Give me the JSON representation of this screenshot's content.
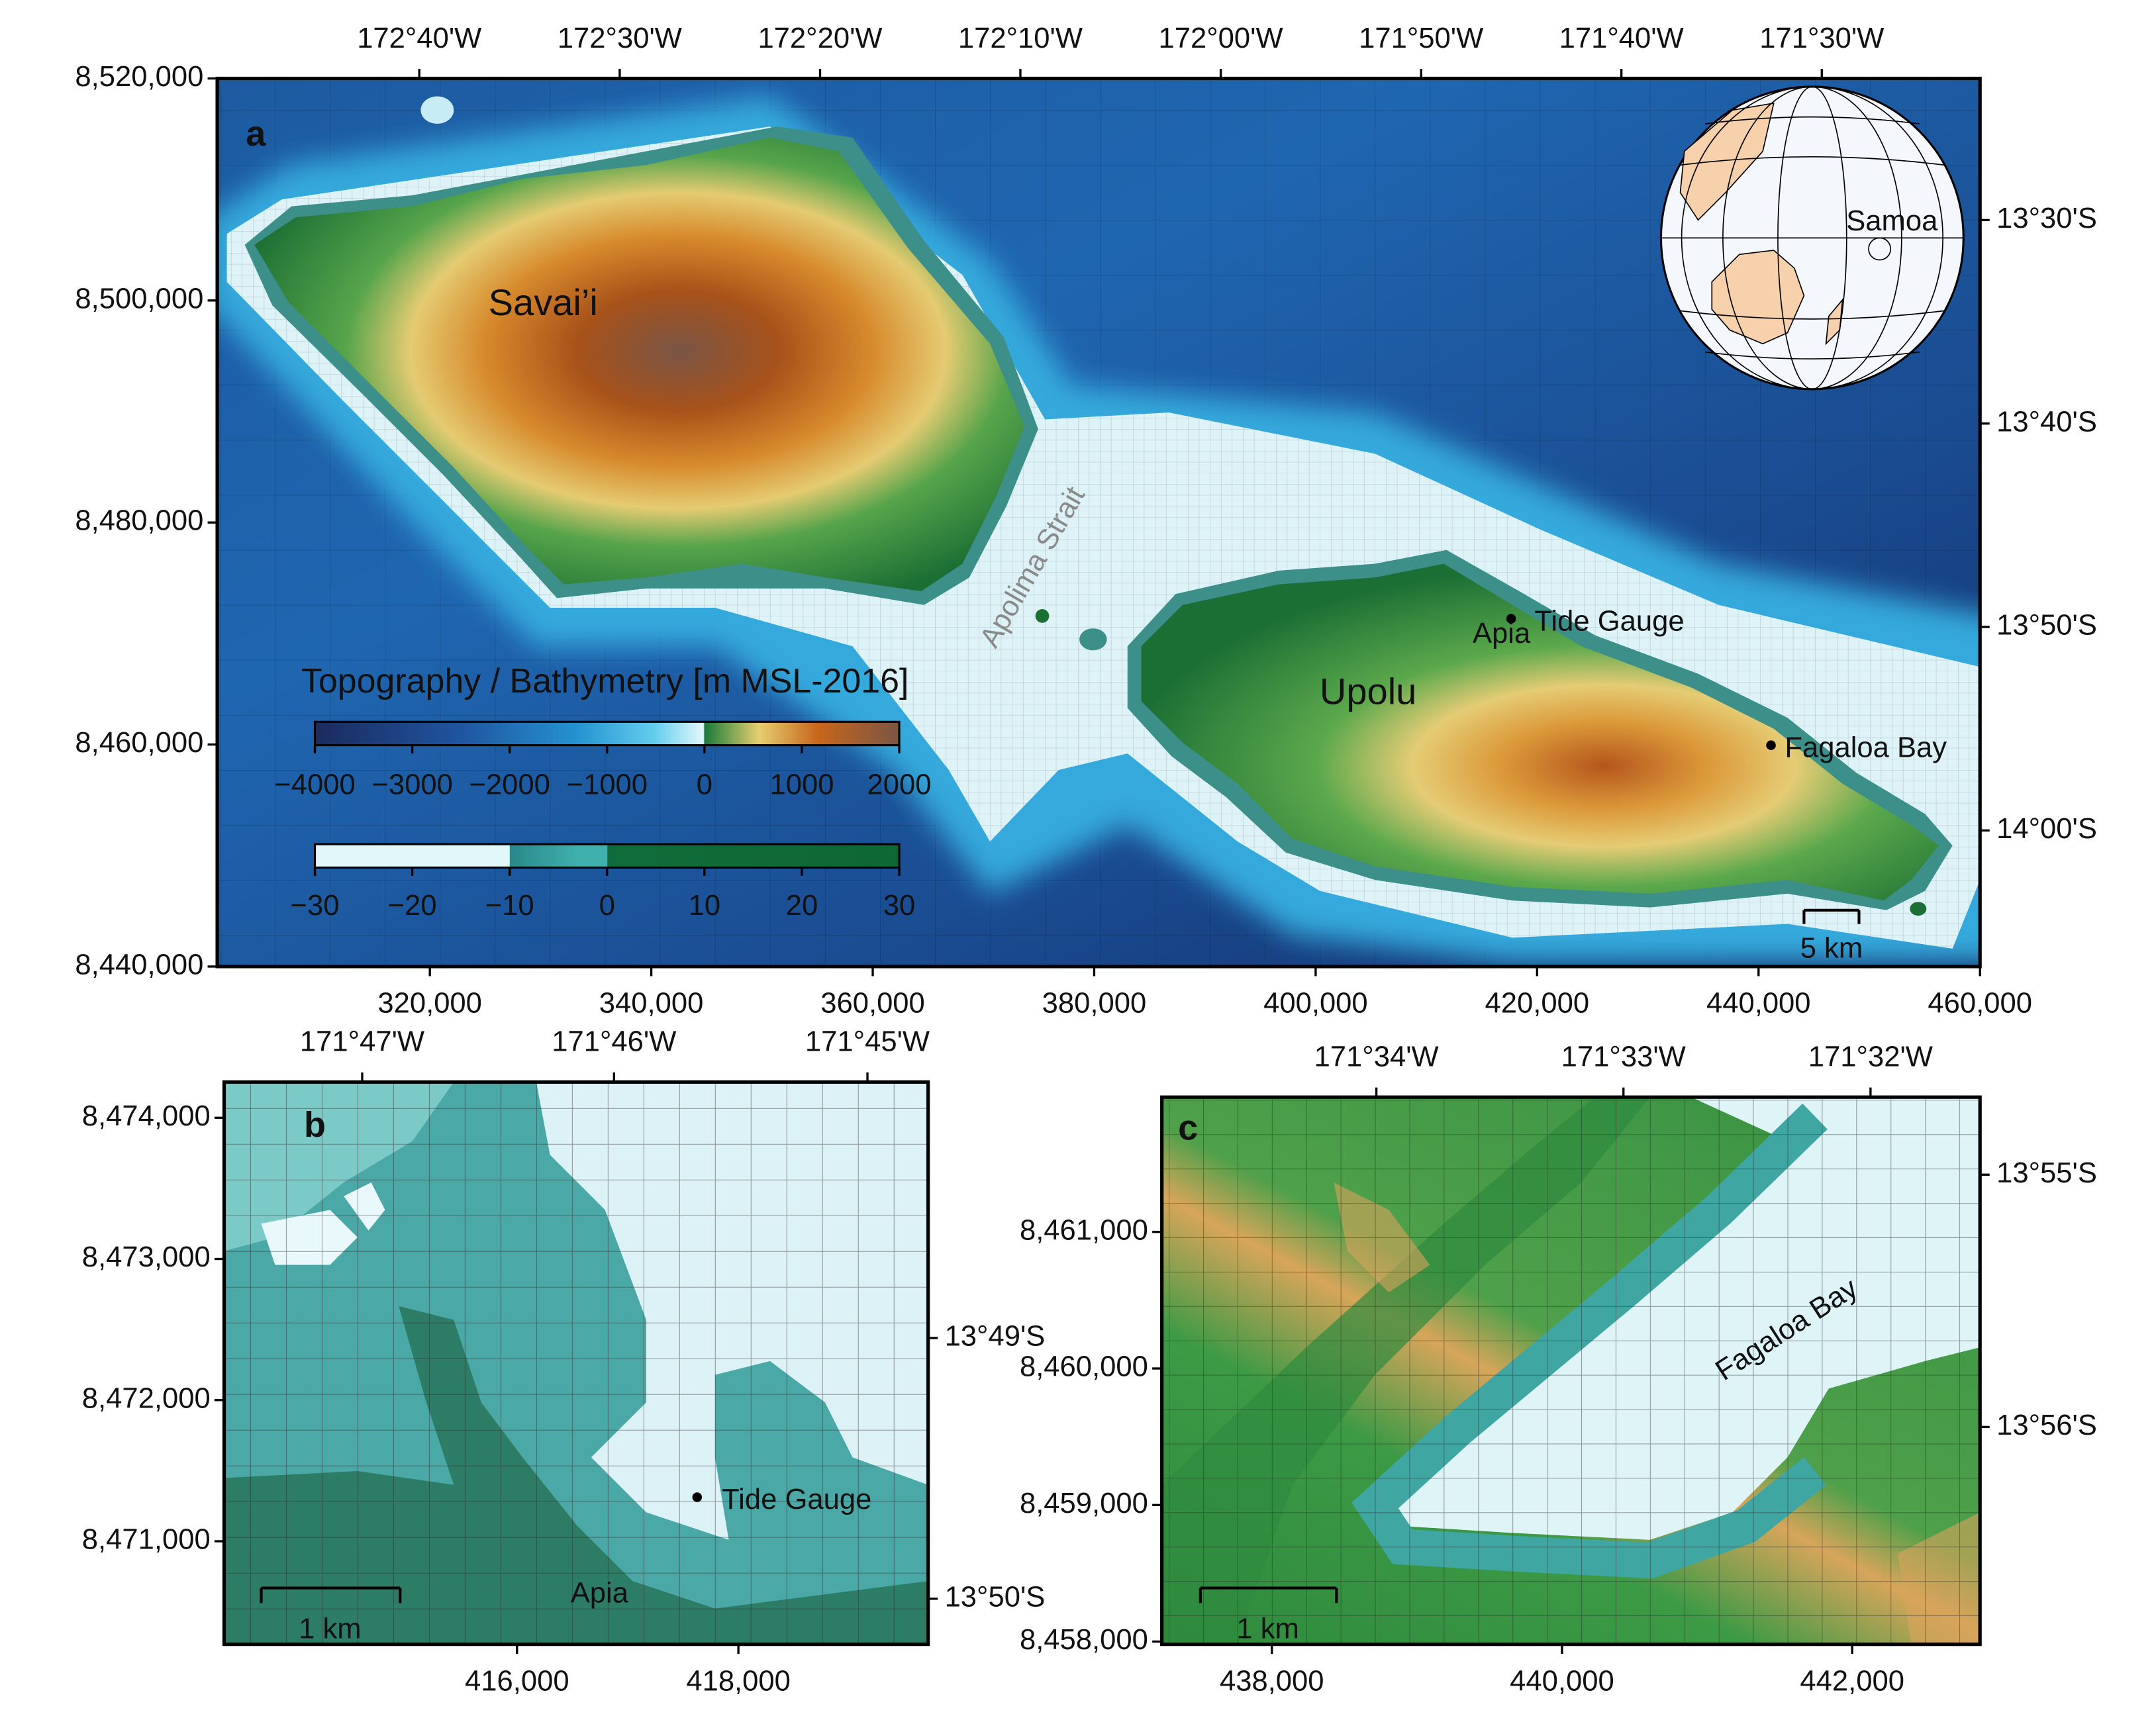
{
  "panels": [
    {
      "label": "a",
      "eastings": {
        "lim": [
          300800,
          460000
        ],
        "ticks": [
          {
            "value": 320000,
            "label": "320,000"
          },
          {
            "value": 340000,
            "label": "340,000"
          },
          {
            "value": 360000,
            "label": "360,000"
          },
          {
            "value": 380000,
            "label": "380,000"
          },
          {
            "value": 400000,
            "label": "400,000"
          },
          {
            "value": 420000,
            "label": "420,000"
          },
          {
            "value": 440000,
            "label": "440,000"
          },
          {
            "value": 460000,
            "label": "460,000"
          }
        ]
      },
      "northings": {
        "lim": [
          8440000,
          8520000
        ],
        "ticks": [
          {
            "value": 8440000,
            "label": "8,440,000"
          },
          {
            "value": 8460000,
            "label": "8,460,000"
          },
          {
            "value": 8480000,
            "label": "8,480,000"
          },
          {
            "value": 8500000,
            "label": "8,500,000"
          },
          {
            "value": 8520000,
            "label": "8,520,000"
          }
        ]
      },
      "longitudes": {
        "lim": [
          -172.8348,
          -171.3684
        ],
        "ticks": [
          {
            "value": -172.6667,
            "label": "172°40'W"
          },
          {
            "value": -172.5,
            "label": "172°30'W"
          },
          {
            "value": -172.3333,
            "label": "172°20'W"
          },
          {
            "value": -172.1667,
            "label": "172°10'W"
          },
          {
            "value": -172.0,
            "label": "172°00'W"
          },
          {
            "value": -171.8333,
            "label": "171°50'W"
          },
          {
            "value": -171.6667,
            "label": "171°40'W"
          },
          {
            "value": -171.5,
            "label": "171°30'W"
          }
        ]
      },
      "latitudes": {
        "lim": [
          -14.1115,
          -13.384
        ],
        "ticks": [
          {
            "value": -13.5,
            "label": "13°30'S"
          },
          {
            "value": -13.6667,
            "label": "13°40'S"
          },
          {
            "value": -13.8333,
            "label": "13°50'S"
          },
          {
            "value": -14.0,
            "label": "14°00'S"
          }
        ]
      },
      "places": [
        "Savai’i",
        "Upolu",
        "Apia",
        "Tide Gauge",
        "Fagaloa Bay",
        "Apolima Strait",
        "Samoa"
      ],
      "scale_bar": "5 km"
    },
    {
      "label": "b",
      "eastings": {
        "lim": [
          413354,
          419714
        ],
        "ticks": [
          {
            "value": 416000,
            "label": "416,000"
          },
          {
            "value": 418000,
            "label": "418,000"
          }
        ]
      },
      "northings": {
        "lim": [
          8470270,
          8474253
        ],
        "ticks": [
          {
            "value": 8471000,
            "label": "8,471,000"
          },
          {
            "value": 8472000,
            "label": "8,472,000"
          },
          {
            "value": 8473000,
            "label": "8,473,000"
          },
          {
            "value": 8474000,
            "label": "8,474,000"
          }
        ]
      },
      "longitudes": {
        "lim": [
          -171.7924,
          -171.746
        ],
        "ticks": [
          {
            "value": -171.7833,
            "label": "171°47'W"
          },
          {
            "value": -171.7667,
            "label": "171°46'W"
          },
          {
            "value": -171.75,
            "label": "171°45'W"
          }
        ]
      },
      "latitudes": {
        "lim": [
          -13.8362,
          -13.8004
        ],
        "ticks": [
          {
            "value": -13.8167,
            "label": "13°49'S"
          },
          {
            "value": -13.8333,
            "label": "13°50'S"
          }
        ]
      },
      "places": [
        "Tide Gauge",
        "Apia"
      ],
      "scale_bar": "1 km"
    },
    {
      "label": "c",
      "eastings": {
        "lim": [
          437242,
          442881
        ],
        "ticks": [
          {
            "value": 438000,
            "label": "438,000"
          },
          {
            "value": 440000,
            "label": "440,000"
          },
          {
            "value": 442000,
            "label": "442,000"
          }
        ]
      },
      "northings": {
        "lim": [
          8457980,
          8461987
        ],
        "ticks": [
          {
            "value": 8458000,
            "label": "8,458,000"
          },
          {
            "value": 8459000,
            "label": "8,459,000"
          },
          {
            "value": 8460000,
            "label": "8,460,000"
          },
          {
            "value": 8461000,
            "label": "8,461,000"
          }
        ]
      },
      "longitudes": {
        "lim": [
          -171.5812,
          -171.5259
        ],
        "ticks": [
          {
            "value": -171.5667,
            "label": "171°34'W"
          },
          {
            "value": -171.55,
            "label": "171°33'W"
          },
          {
            "value": -171.5333,
            "label": "171°32'W"
          }
        ]
      },
      "latitudes": {
        "lim": [
          -13.9476,
          -13.9116
        ],
        "ticks": [
          {
            "value": -13.9167,
            "label": "13°55'S"
          },
          {
            "value": -13.9333,
            "label": "13°56'S"
          }
        ]
      },
      "places": [
        "Fagaloa Bay"
      ],
      "scale_bar": "1 km"
    }
  ],
  "colorbars": [
    {
      "title": "Topography / Bathymetry [m MSL-2016]",
      "lim": [
        -4000,
        2000
      ],
      "ticks": [
        {
          "value": -4000,
          "label": "−4000"
        },
        {
          "value": -3000,
          "label": "−3000"
        },
        {
          "value": -2000,
          "label": "−2000"
        },
        {
          "value": -1000,
          "label": "−1000"
        },
        0,
        1000,
        2000
      ]
    },
    {
      "lim": [
        -30,
        30
      ],
      "ticks": [
        {
          "value": -30,
          "label": "−30"
        },
        {
          "value": -20,
          "label": "−20"
        },
        {
          "value": -10,
          "label": "−10"
        },
        0,
        10,
        20,
        30
      ]
    }
  ]
}
